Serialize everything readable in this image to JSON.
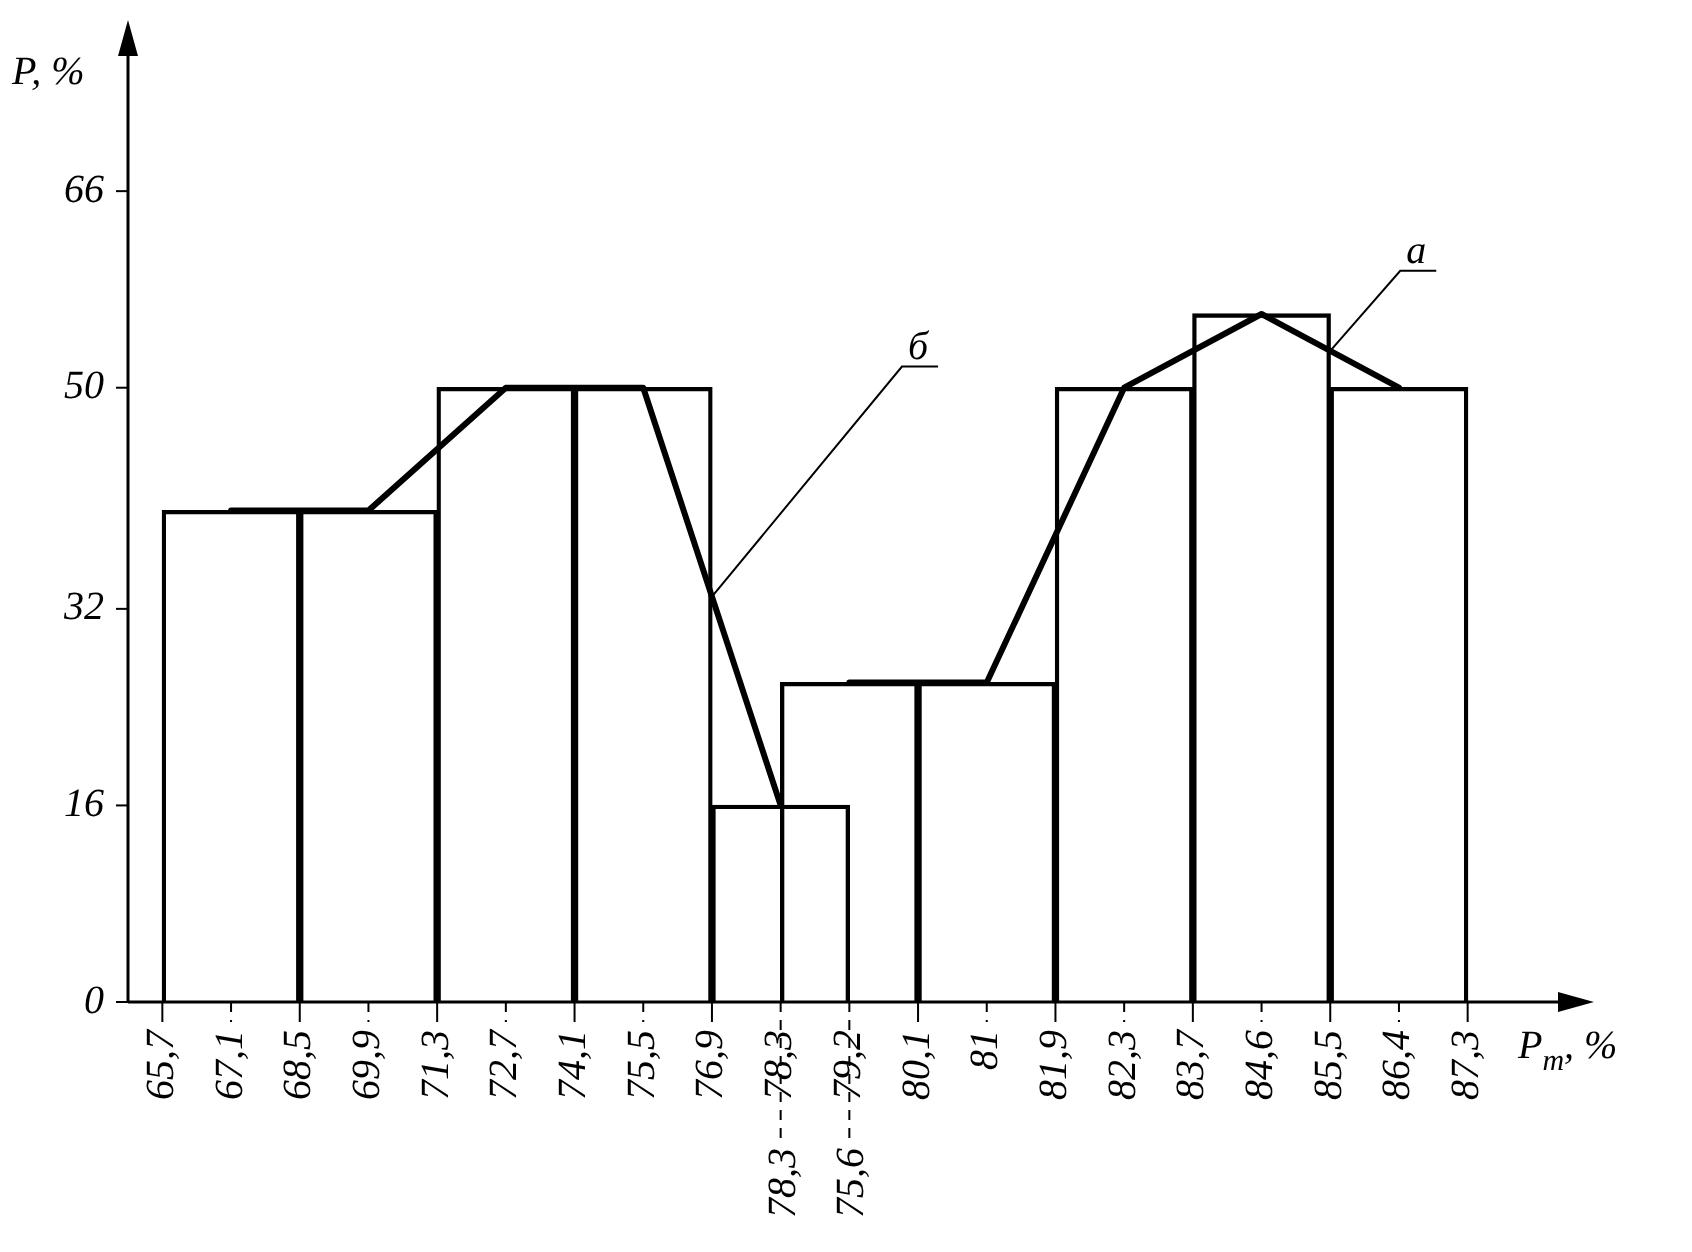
{
  "chart_data": {
    "type": "bar",
    "xlabel": "P$_{т}$, %",
    "ylabel": "P, %",
    "categories": [
      "65,7",
      "67,1",
      "68,5",
      "69,9",
      "71,3",
      "72,7",
      "74,1",
      "75,5",
      "76,9",
      "78,3",
      "79,2",
      "80,1",
      "81",
      "81,9",
      "82,3",
      "83,7",
      "84,6",
      "85,5",
      "86,4",
      "87,3"
    ],
    "ylim": [
      0,
      77
    ],
    "yticks": [
      0,
      16,
      32,
      50,
      66
    ],
    "legend": false,
    "annotations": [
      {
        "text": "78,3",
        "x": "78,3"
      },
      {
        "text": "75,6",
        "x": "79,2"
      }
    ],
    "series": [
      {
        "color": "#000000",
        "values": [
          null,
          40,
          null,
          40,
          null,
          50,
          null,
          50,
          null,
          16,
          null,
          null,
          null,
          null,
          null,
          null,
          null,
          null,
          null,
          null
        ]
      },
      {
        "color": "#000000",
        "values": [
          null,
          null,
          null,
          null,
          null,
          null,
          null,
          null,
          null,
          null,
          26,
          null,
          26,
          null,
          50,
          null,
          56,
          null,
          50,
          null
        ]
      },
      {
        "type": "line",
        "name": "б",
        "color": "#000000",
        "values": [
          null,
          40,
          null,
          40,
          null,
          50,
          null,
          50,
          null,
          16,
          null,
          null,
          null,
          null,
          null,
          null,
          null,
          null,
          null,
          null
        ]
      },
      {
        "type": "line",
        "name": "а",
        "color": "#000000",
        "values": [
          null,
          null,
          null,
          null,
          null,
          null,
          null,
          null,
          null,
          null,
          26,
          null,
          26,
          null,
          50,
          null,
          56,
          null,
          50,
          null
        ]
      }
    ]
  }
}
